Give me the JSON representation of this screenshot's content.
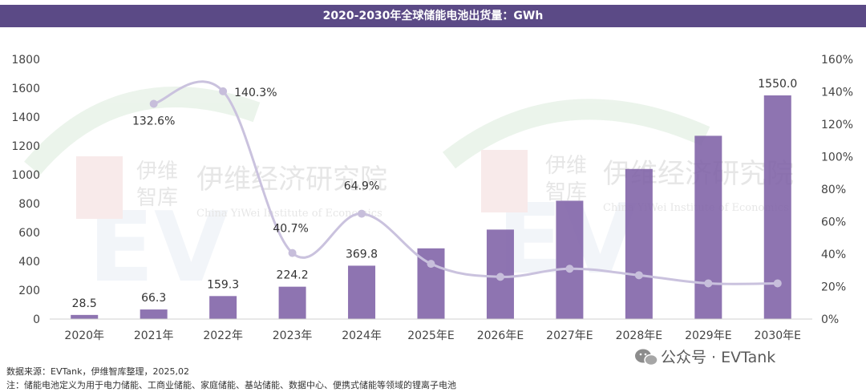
{
  "title": "2020-2030年全球储能电池出货量：GWh",
  "footnotes": {
    "source": "数据来源：EVTank，伊维智库整理，2025,02",
    "note": "注：储能电池定义为用于电力储能、工商业储能、家庭储能、基站储能、数据中心、便携式储能等领域的锂离子电池"
  },
  "watermarks": {
    "left_cn": "伊维经济研究院",
    "left_cn_small": "伊维",
    "left_cn_small2": "智库",
    "left_en": "China YiWei Institute of Economics",
    "right_cn": "伊维经济研究院",
    "right_cn_small": "伊维",
    "right_cn_small2": "智库",
    "right_en": "China YiWei Institute of Economics",
    "wechat": "公众号 · EVTank"
  },
  "colors": {
    "title_bg": "#5b4a86",
    "bar": "#7e61a6",
    "line": "#cac2de",
    "point": "#c7bedb",
    "axis_text": "#444444"
  },
  "chart_data": {
    "type": "bar",
    "categories": [
      "2020年",
      "2021年",
      "2022年",
      "2023年",
      "2024年",
      "2025年E",
      "2026年E",
      "2027年E",
      "2028年E",
      "2029年E",
      "2030年E"
    ],
    "series": [
      {
        "type": "bar",
        "axis": "left",
        "values": [
          28.5,
          66.3,
          159.3,
          224.2,
          369.8,
          490,
          620,
          820,
          1040,
          1270,
          1550.0
        ],
        "labels": [
          "28.5",
          "66.3",
          "159.3",
          "224.2",
          "369.8",
          "",
          "",
          "",
          "",
          "",
          "1550.0"
        ]
      },
      {
        "type": "line",
        "axis": "right",
        "values": [
          null,
          132.6,
          140.3,
          40.7,
          64.9,
          34,
          26,
          31,
          27,
          22,
          22
        ],
        "labels": [
          "",
          "132.6%",
          "140.3%",
          "40.7%",
          "64.9%",
          "",
          "",
          "",
          "",
          "",
          ""
        ]
      }
    ],
    "y_left": {
      "min": 0,
      "max": 1800,
      "ticks": [
        "0",
        "200",
        "400",
        "600",
        "800",
        "1000",
        "1200",
        "1400",
        "1600",
        "1800"
      ]
    },
    "y_right": {
      "min": 0,
      "max": 160,
      "ticks": [
        "0%",
        "20%",
        "40%",
        "60%",
        "80%",
        "100%",
        "120%",
        "140%",
        "160%"
      ]
    },
    "grid": false,
    "legend": "none"
  }
}
